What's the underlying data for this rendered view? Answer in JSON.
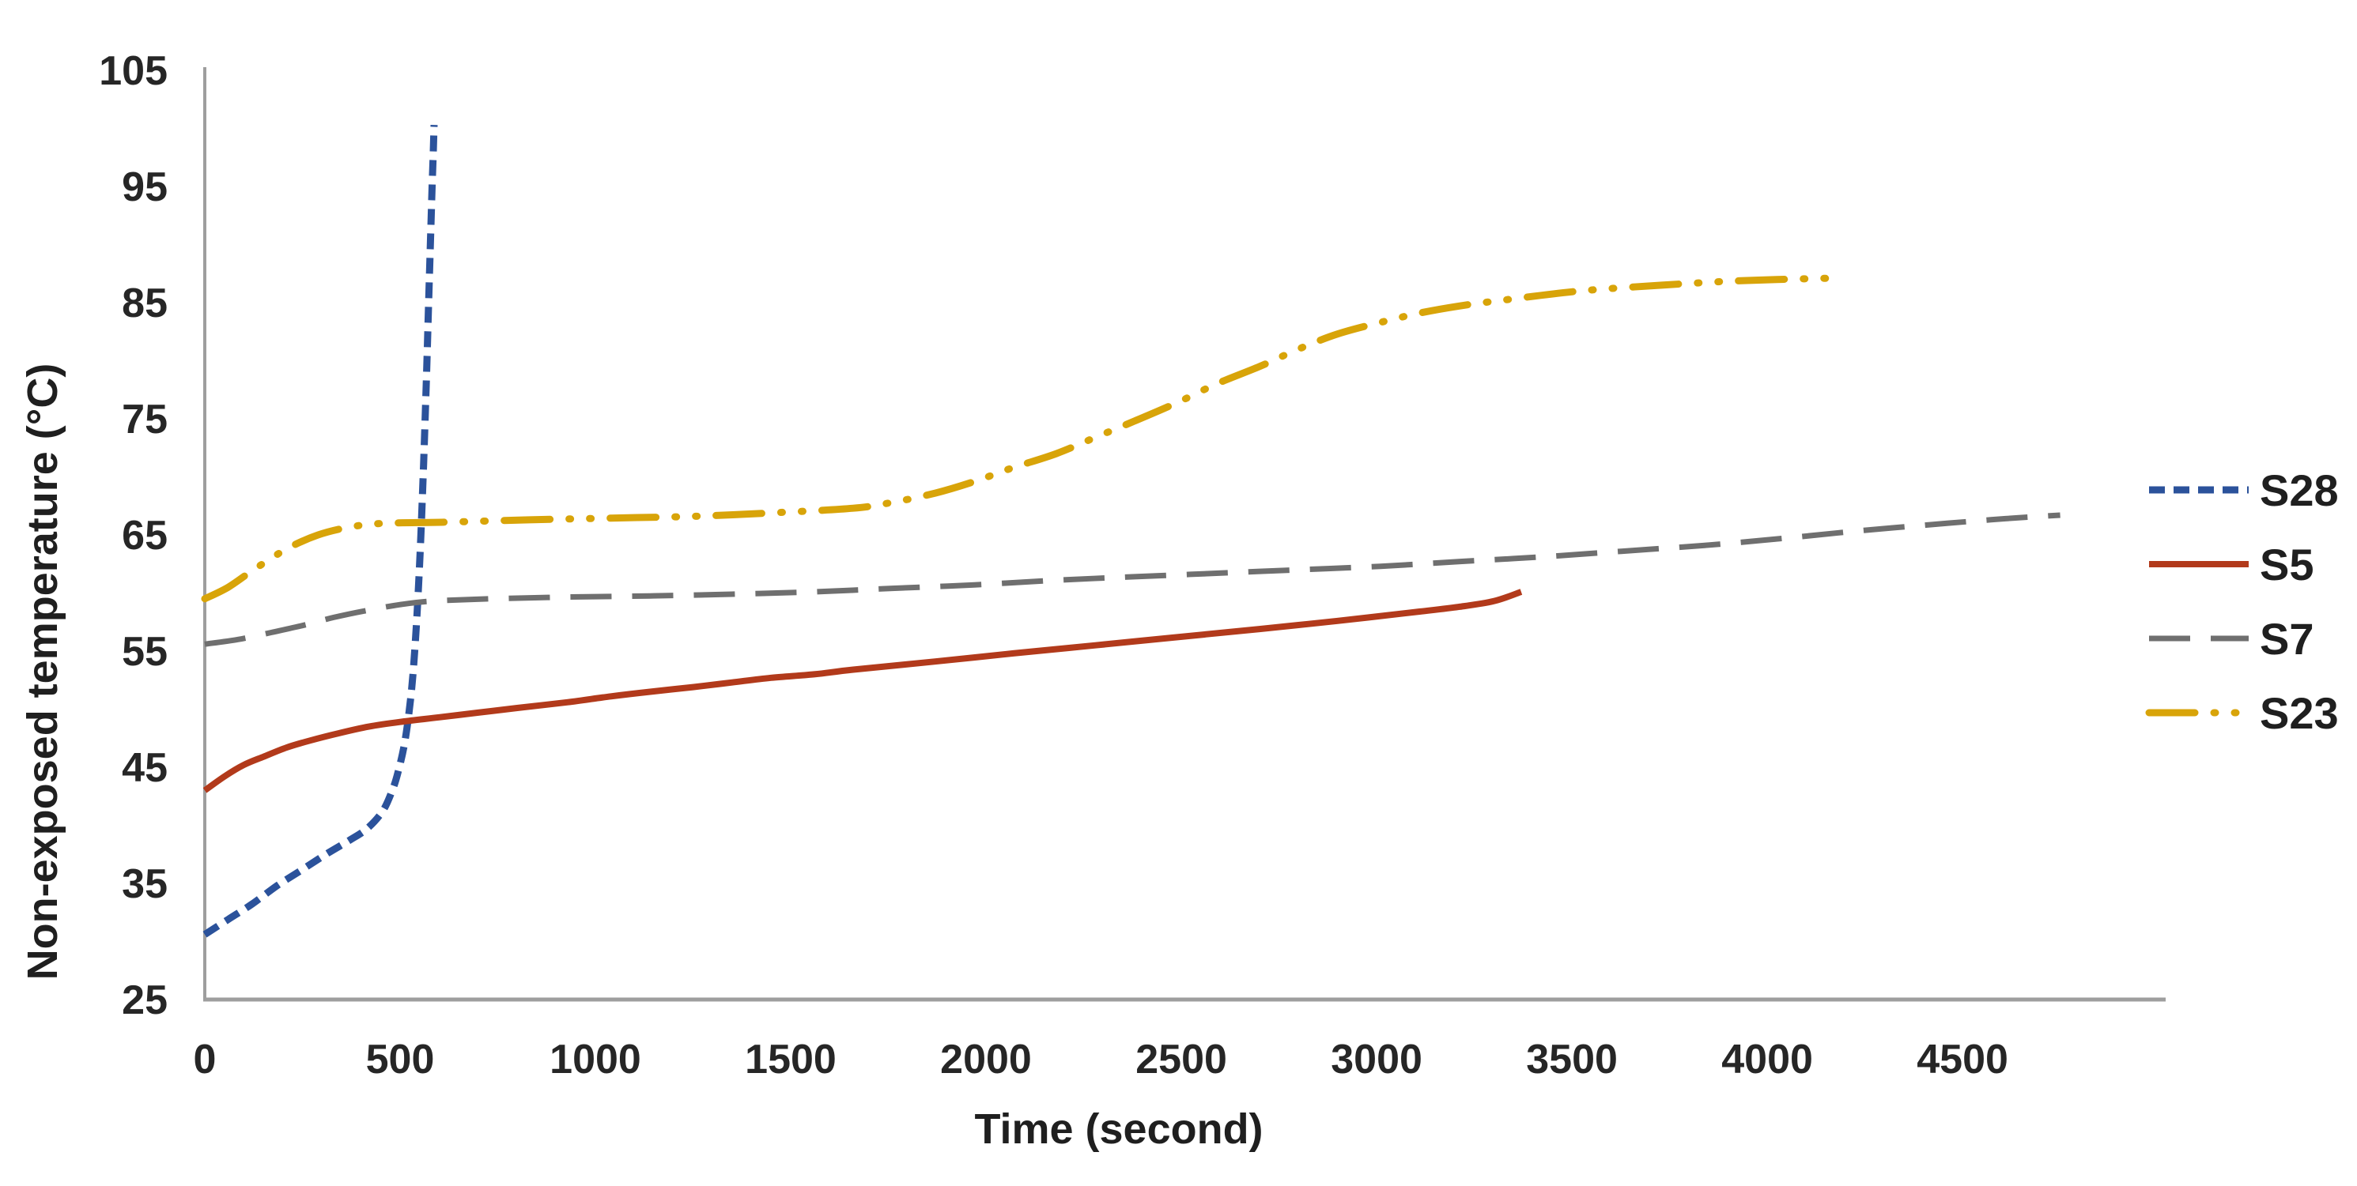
{
  "chart_data": {
    "type": "line",
    "title": "",
    "xlabel": "Time (second)",
    "ylabel": "Non-exposed temperature (°C)",
    "xlim": [
      0,
      5020
    ],
    "ylim": [
      25,
      105
    ],
    "xticks": [
      0,
      500,
      1000,
      1500,
      2000,
      2500,
      3000,
      3500,
      4000,
      4500
    ],
    "yticks": [
      25,
      35,
      45,
      55,
      65,
      75,
      85,
      95,
      105
    ],
    "grid": false,
    "legend_position": "right",
    "axis_color": "#9E9E9E",
    "tick_text_color": "#262626",
    "series": [
      {
        "name": "S28",
        "color": "#2B529B",
        "line_style": "short-dash",
        "dasharray": "20 11",
        "width": 9,
        "linecap": "butt",
        "points": [
          [
            0,
            30.6
          ],
          [
            60,
            31.9
          ],
          [
            120,
            33.2
          ],
          [
            185,
            34.8
          ],
          [
            250,
            36.2
          ],
          [
            310,
            37.5
          ],
          [
            370,
            38.7
          ],
          [
            415,
            39.7
          ],
          [
            455,
            41.2
          ],
          [
            480,
            43
          ],
          [
            495,
            44.6
          ],
          [
            510,
            46.8
          ],
          [
            522,
            49.5
          ],
          [
            533,
            53
          ],
          [
            543,
            58
          ],
          [
            552,
            64
          ],
          [
            560,
            71
          ],
          [
            567,
            78
          ],
          [
            573,
            85
          ],
          [
            578,
            90.5
          ],
          [
            582,
            95
          ],
          [
            585,
            98
          ],
          [
            587,
            100.3
          ]
        ]
      },
      {
        "name": "S5",
        "color": "#B23A1B",
        "line_style": "solid",
        "dasharray": "",
        "width": 8,
        "linecap": "butt",
        "points": [
          [
            0,
            43
          ],
          [
            50,
            44.2
          ],
          [
            100,
            45.2
          ],
          [
            150,
            45.9
          ],
          [
            210,
            46.7
          ],
          [
            270,
            47.3
          ],
          [
            340,
            47.9
          ],
          [
            420,
            48.5
          ],
          [
            500,
            48.9
          ],
          [
            600,
            49.3
          ],
          [
            700,
            49.7
          ],
          [
            800,
            50.1
          ],
          [
            930,
            50.6
          ],
          [
            1040,
            51.1
          ],
          [
            1140,
            51.5
          ],
          [
            1250,
            51.9
          ],
          [
            1350,
            52.3
          ],
          [
            1450,
            52.7
          ],
          [
            1560,
            53
          ],
          [
            1660,
            53.4
          ],
          [
            1870,
            54.1
          ],
          [
            2070,
            54.8
          ],
          [
            2280,
            55.5
          ],
          [
            2490,
            56.2
          ],
          [
            2700,
            56.9
          ],
          [
            2900,
            57.6
          ],
          [
            3110,
            58.4
          ],
          [
            3210,
            58.8
          ],
          [
            3300,
            59.3
          ],
          [
            3370,
            60.1
          ]
        ]
      },
      {
        "name": "S7",
        "color": "#6F6F6F",
        "line_style": "long-dash",
        "dasharray": "52 26",
        "width": 7,
        "linecap": "butt",
        "points": [
          [
            0,
            55.6
          ],
          [
            85,
            56
          ],
          [
            170,
            56.6
          ],
          [
            250,
            57.2
          ],
          [
            330,
            57.9
          ],
          [
            415,
            58.5
          ],
          [
            500,
            59
          ],
          [
            580,
            59.3
          ],
          [
            730,
            59.5
          ],
          [
            930,
            59.65
          ],
          [
            1140,
            59.75
          ],
          [
            1350,
            59.9
          ],
          [
            1560,
            60.1
          ],
          [
            1760,
            60.4
          ],
          [
            1970,
            60.7
          ],
          [
            2180,
            61.1
          ],
          [
            2380,
            61.4
          ],
          [
            2590,
            61.7
          ],
          [
            2800,
            62
          ],
          [
            3010,
            62.3
          ],
          [
            3210,
            62.7
          ],
          [
            3420,
            63.1
          ],
          [
            3630,
            63.6
          ],
          [
            3840,
            64.1
          ],
          [
            4040,
            64.7
          ],
          [
            4250,
            65.4
          ],
          [
            4460,
            66
          ],
          [
            4610,
            66.4
          ],
          [
            4750,
            66.7
          ]
        ]
      },
      {
        "name": "S23",
        "color": "#D8A409",
        "line_style": "dash-dot-dot",
        "dasharray": "58 24 2 24 2 24",
        "width": 9,
        "linecap": "round",
        "points": [
          [
            0,
            59.5
          ],
          [
            60,
            60.5
          ],
          [
            125,
            62
          ],
          [
            210,
            63.8
          ],
          [
            290,
            65
          ],
          [
            375,
            65.7
          ],
          [
            460,
            66
          ],
          [
            620,
            66.1
          ],
          [
            830,
            66.3
          ],
          [
            1040,
            66.45
          ],
          [
            1250,
            66.6
          ],
          [
            1450,
            66.9
          ],
          [
            1660,
            67.3
          ],
          [
            1760,
            67.8
          ],
          [
            1870,
            68.6
          ],
          [
            1970,
            69.6
          ],
          [
            2070,
            70.8
          ],
          [
            2180,
            72
          ],
          [
            2280,
            73.4
          ],
          [
            2380,
            74.8
          ],
          [
            2490,
            76.4
          ],
          [
            2590,
            78
          ],
          [
            2700,
            79.5
          ],
          [
            2800,
            81
          ],
          [
            2900,
            82.3
          ],
          [
            3010,
            83.3
          ],
          [
            3110,
            84.1
          ],
          [
            3210,
            84.7
          ],
          [
            3320,
            85.2
          ],
          [
            3520,
            86
          ],
          [
            3730,
            86.5
          ],
          [
            3940,
            86.9
          ],
          [
            4160,
            87.1
          ]
        ]
      }
    ]
  }
}
